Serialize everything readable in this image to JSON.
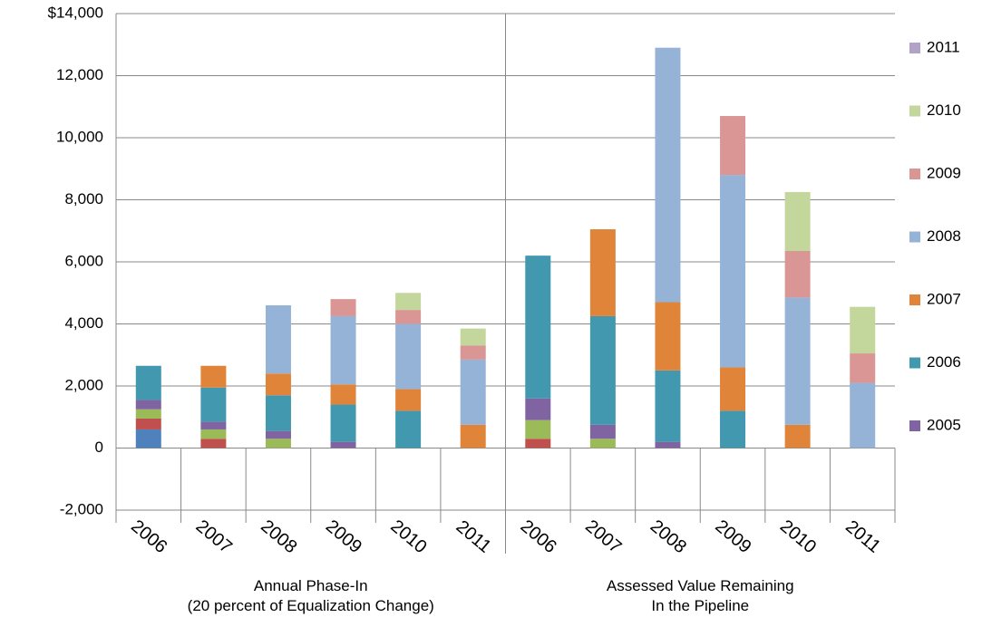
{
  "chart_data": {
    "type": "stacked_bar",
    "categories": [
      "2006",
      "2007",
      "2008",
      "2009",
      "2010",
      "2011",
      "2006",
      "2007",
      "2008",
      "2009",
      "2010",
      "2011"
    ],
    "groups": [
      {
        "label": "Annual Phase-In\n(20 percent of Equalization Change)"
      },
      {
        "label": "Assessed Value Remaining\nIn the Pipeline"
      }
    ],
    "series": [
      {
        "color": "#4f81bd",
        "values": [
          600,
          0,
          0,
          0,
          0,
          0,
          0,
          0,
          0,
          0,
          0,
          0
        ]
      },
      {
        "color": "#c0504d",
        "values": [
          350,
          300,
          0,
          0,
          0,
          0,
          300,
          0,
          0,
          0,
          0,
          0
        ]
      },
      {
        "color": "#9bbb59",
        "values": [
          300,
          300,
          300,
          0,
          0,
          0,
          600,
          300,
          0,
          0,
          0,
          0
        ]
      },
      {
        "name": "2005",
        "color": "#8064a2",
        "values": [
          300,
          250,
          250,
          200,
          0,
          0,
          700,
          450,
          200,
          0,
          0,
          0
        ]
      },
      {
        "name": "2006",
        "color": "#4198af",
        "values": [
          1100,
          1100,
          1150,
          1200,
          1200,
          0,
          4600,
          3500,
          2300,
          1200,
          0,
          0
        ]
      },
      {
        "name": "2007",
        "color": "#e0843a",
        "values": [
          0,
          700,
          700,
          650,
          700,
          750,
          0,
          2800,
          2200,
          1400,
          750,
          0
        ]
      },
      {
        "name": "2008",
        "color": "#95b3d7",
        "values": [
          0,
          0,
          2200,
          2200,
          2100,
          2100,
          0,
          0,
          8200,
          6200,
          4100,
          2100
        ]
      },
      {
        "name": "2009",
        "color": "#d99694",
        "values": [
          0,
          0,
          0,
          550,
          450,
          450,
          0,
          0,
          0,
          1900,
          1500,
          950
        ]
      },
      {
        "name": "2010",
        "color": "#c3d69b",
        "values": [
          0,
          0,
          0,
          0,
          550,
          550,
          0,
          0,
          0,
          0,
          1900,
          1500
        ]
      },
      {
        "name": "2011",
        "color": "#b3a2c7",
        "values": [
          0,
          0,
          0,
          0,
          0,
          0,
          0,
          0,
          0,
          0,
          0,
          0
        ]
      }
    ],
    "ylim": [
      -2000,
      14000
    ],
    "yticks": [
      {
        "value": -2000,
        "label": "-2,000"
      },
      0,
      {
        "value": 2000,
        "label": "2,000"
      },
      {
        "value": 4000,
        "label": "4,000"
      },
      {
        "value": 6000,
        "label": "6,000"
      },
      {
        "value": 8000,
        "label": "8,000"
      },
      {
        "value": 10000,
        "label": "10,000"
      },
      {
        "value": 12000,
        "label": "12,000"
      },
      {
        "value": 14000,
        "label": "$14,000"
      }
    ],
    "grid": true
  }
}
